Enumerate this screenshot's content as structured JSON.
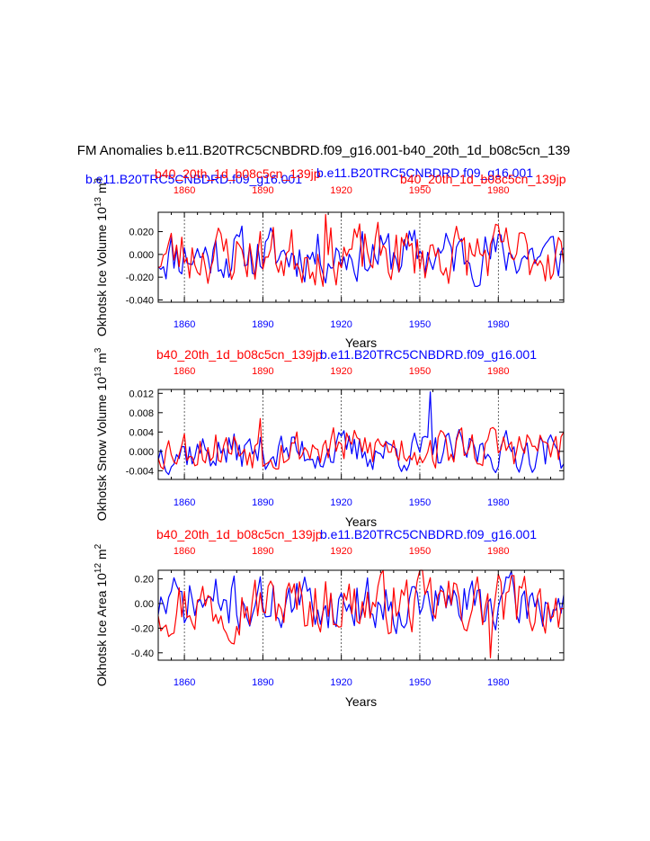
{
  "figure": {
    "title": "FM Anomalies b.e11.B20TRC5CNBDRD.f09_g16.001-b40_20th_1d_b08c5cn_139",
    "top_blue_label_left": "b.e11.B20TRC5CNBDRD.f09_g16.001",
    "top_red_label_left": "b40_20th_1d_b08c5cn_139jp",
    "top_blue_label_right": "b.e11.B20TRC5CNBDRD.f09_g16.001",
    "top_red_label_right": "b40_20th_1d_b08c5cn_139jp",
    "colors": {
      "model_a": "#0000ff",
      "model_b": "#ff0000",
      "axis": "#000000",
      "grid": "#000000"
    }
  },
  "chart_data": [
    {
      "type": "line",
      "id": "ice-volume",
      "ylabel": "Okhotsk Ice Volume 10^13 m^3",
      "ylabel_main": "Okhotsk Ice Volume 10",
      "ylabel_exp": "13",
      "ylabel_unit": "m",
      "ylabel_unit_exp": "3",
      "xlabel": "Years",
      "header_red": "b40_20th_1d_b08c5cn_139jp",
      "header_blue": "b.e11.B20TRC5CNBDRD.f09_g16.001",
      "xlim": [
        1850,
        2005
      ],
      "ylim": [
        -0.042,
        0.037
      ],
      "yticks": [
        0.02,
        0.0,
        -0.02,
        -0.04
      ],
      "ytick_labels": [
        "0.020",
        "0.000",
        "-0.020",
        "-0.040"
      ],
      "xticks": [
        1860,
        1890,
        1920,
        1950,
        1980
      ],
      "xtick_labels": [
        "1860",
        "1890",
        "1920",
        "1950",
        "1980"
      ],
      "series": [
        {
          "name": "b.e11.B20TRC5CNBDRD.f09_g16.001",
          "color": "#0000ff",
          "amplitude": 0.016,
          "bias": 0.0,
          "seed": 11,
          "spike_year": null,
          "spike_value": null
        },
        {
          "name": "b40_20th_1d_b08c5cn_139jp",
          "color": "#ff0000",
          "amplitude": 0.018,
          "bias": 0.0,
          "seed": 23,
          "spike_year": 1914,
          "spike_value": 0.035
        }
      ]
    },
    {
      "type": "line",
      "id": "snow-volume",
      "ylabel": "Okhotsk Snow Volume 10^13 m^3",
      "ylabel_main": "Okhotsk Snow Volume 10",
      "ylabel_exp": "13",
      "ylabel_unit": "m",
      "ylabel_unit_exp": "3",
      "xlabel": "Years",
      "header_red": "b40_20th_1d_b08c5cn_139jp",
      "header_blue": "b.e11.B20TRC5CNBDRD.f09_g16.001",
      "xlim": [
        1850,
        2005
      ],
      "ylim": [
        -0.0058,
        0.0128
      ],
      "yticks": [
        0.012,
        0.008,
        0.004,
        0.0,
        -0.004
      ],
      "ytick_labels": [
        "0.012",
        "0.008",
        "0.004",
        "0.000",
        "-0.004"
      ],
      "xticks": [
        1860,
        1890,
        1920,
        1950,
        1980
      ],
      "xtick_labels": [
        "1860",
        "1890",
        "1920",
        "1950",
        "1980"
      ],
      "series": [
        {
          "name": "b.e11.B20TRC5CNBDRD.f09_g16.001",
          "color": "#0000ff",
          "amplitude": 0.0028,
          "bias": 0.0,
          "seed": 37,
          "spike_year": 1954,
          "spike_value": 0.0123
        },
        {
          "name": "b40_20th_1d_b08c5cn_139jp",
          "color": "#ff0000",
          "amplitude": 0.003,
          "bias": 0.0005,
          "seed": 53,
          "spike_year": 1889,
          "spike_value": 0.0068
        }
      ]
    },
    {
      "type": "line",
      "id": "ice-area",
      "ylabel": "Okhotsk Ice Area 10^12 m^2",
      "ylabel_main": "Okhotsk Ice Area 10",
      "ylabel_exp": "12",
      "ylabel_unit": "m",
      "ylabel_unit_exp": "2",
      "xlabel": "Years",
      "header_red": "b40_20th_1d_b08c5cn_139jp",
      "header_blue": "b.e11.B20TRC5CNBDRD.f09_g16.001",
      "xlim": [
        1850,
        2005
      ],
      "ylim": [
        -0.46,
        0.27
      ],
      "yticks": [
        0.2,
        0.0,
        -0.2,
        -0.4
      ],
      "ytick_labels": [
        "0.20",
        "0.00",
        "-0.20",
        "-0.40"
      ],
      "xticks": [
        1860,
        1890,
        1920,
        1950,
        1980
      ],
      "xtick_labels": [
        "1860",
        "1890",
        "1920",
        "1950",
        "1980"
      ],
      "series": [
        {
          "name": "b.e11.B20TRC5CNBDRD.f09_g16.001",
          "color": "#0000ff",
          "amplitude": 0.15,
          "bias": 0.0,
          "seed": 71,
          "spike_year": null,
          "spike_value": null
        },
        {
          "name": "b40_20th_1d_b08c5cn_139jp",
          "color": "#ff0000",
          "amplitude": 0.17,
          "bias": 0.0,
          "seed": 97,
          "spike_year": 1977,
          "spike_value": -0.44
        }
      ]
    }
  ]
}
